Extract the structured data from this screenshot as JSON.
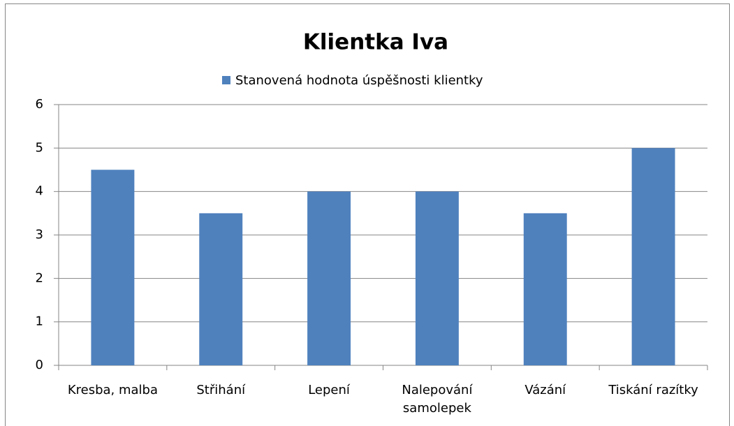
{
  "chart_data": {
    "type": "bar",
    "title": "Klientka Iva",
    "series": [
      {
        "name": "Stanovená hodnota úspěšnosti klientky",
        "color": "#4f81bd",
        "values": [
          4.5,
          3.5,
          4,
          4,
          3.5,
          5
        ]
      }
    ],
    "categories": [
      "Kresba, malba",
      "Střihání",
      "Lepení",
      "Nalepování samolepek",
      "Vázání",
      "Tiskání razítky"
    ],
    "ylim": [
      0,
      6
    ],
    "yticks": [
      0,
      1,
      2,
      3,
      4,
      5,
      6
    ],
    "grid": true,
    "legend": "top"
  }
}
